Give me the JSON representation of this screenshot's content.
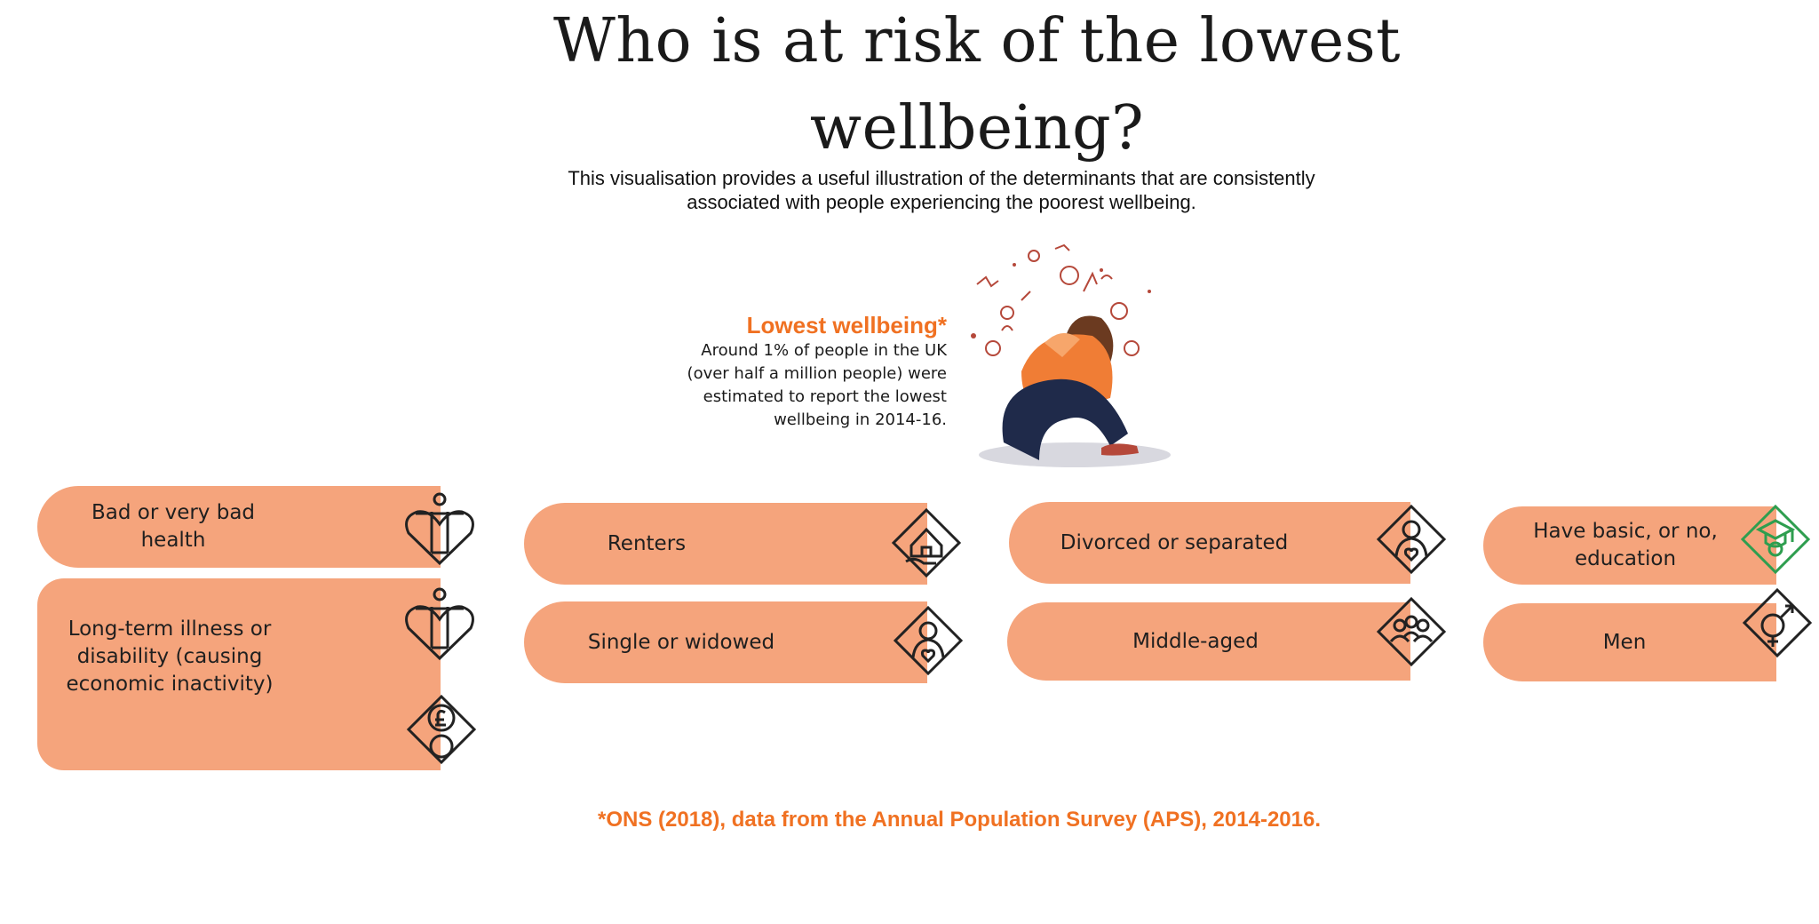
{
  "title": "Who is at risk of the lowest wellbeing?",
  "subtitle": "This visualisation provides a useful illustration of the determinants that are consistently associated with people experiencing the poorest wellbeing.",
  "callout": {
    "heading": "Lowest wellbeing*",
    "body": "Around 1% of people in the UK (over half a million people) were estimated to report the lowest wellbeing in 2014-16."
  },
  "determinants": [
    {
      "label": "Bad or very bad health",
      "icon": "person-heart-icon"
    },
    {
      "label": "Long-term illness or disability (causing economic inactivity)",
      "icon": "person-heart-icon, pound-gears-icon"
    },
    {
      "label": "Renters",
      "icon": "house-hand-icon"
    },
    {
      "label": "Single or widowed",
      "icon": "person-heart-diamond-icon"
    },
    {
      "label": "Divorced or separated",
      "icon": "person-heart-diamond-icon"
    },
    {
      "label": "Middle-aged",
      "icon": "group-people-icon"
    },
    {
      "label": "Have basic, or no, education",
      "icon": "graduate-icon"
    },
    {
      "label": "Men",
      "icon": "gender-symbol-icon"
    }
  ],
  "footnote": "*ONS (2018), data from the Annual Population Survey (APS), 2014-2016.",
  "colors": {
    "accent": "#f07122",
    "pill": "#f5a47c"
  }
}
